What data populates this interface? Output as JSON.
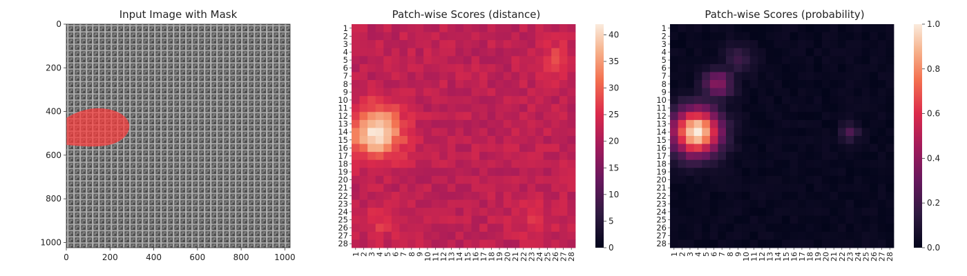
{
  "chart_data": [
    {
      "type": "image",
      "title": "Input Image with Mask",
      "x_ticks": [
        0,
        200,
        400,
        600,
        800,
        1000
      ],
      "y_ticks": [
        0,
        200,
        400,
        600,
        800,
        1000
      ],
      "xlim": [
        0,
        1024
      ],
      "ylim": [
        1024,
        0
      ],
      "mask_color": "#ff3b3b",
      "texture_colors": [
        "#2f2f2f",
        "#9a9a9a"
      ]
    },
    {
      "type": "heatmap",
      "title": "Patch-wise Scores (distance)",
      "rows": [
        "1",
        "2",
        "3",
        "4",
        "5",
        "6",
        "7",
        "8",
        "9",
        "10",
        "11",
        "12",
        "13",
        "14",
        "15",
        "16",
        "17",
        "18",
        "19",
        "20",
        "21",
        "22",
        "23",
        "24",
        "25",
        "26",
        "27",
        "28"
      ],
      "cols": [
        "1",
        "2",
        "3",
        "4",
        "5",
        "6",
        "7",
        "8",
        "9",
        "10",
        "11",
        "12",
        "13",
        "14",
        "15",
        "16",
        "17",
        "18",
        "19",
        "20",
        "21",
        "22",
        "23",
        "24",
        "25",
        "26",
        "27",
        "28"
      ],
      "vmin": 0,
      "vmax": 42,
      "colorbar_ticks": [
        0,
        5,
        10,
        15,
        20,
        25,
        30,
        35,
        40
      ],
      "colormap": "rocket",
      "background_level": 22,
      "hotspots": [
        {
          "row": 14,
          "col": 3.6,
          "peak": 42,
          "sigma": 1.7
        },
        {
          "row": 5,
          "col": 26,
          "peak": 27,
          "sigma": 1.2
        },
        {
          "row": 25,
          "col": 4.5,
          "peak": 26,
          "sigma": 1.3
        },
        {
          "row": 25,
          "col": 23.5,
          "peak": 25,
          "sigma": 1.3
        }
      ]
    },
    {
      "type": "heatmap",
      "title": "Patch-wise Scores (probability)",
      "rows": [
        "1",
        "2",
        "3",
        "4",
        "5",
        "6",
        "7",
        "8",
        "9",
        "10",
        "11",
        "12",
        "13",
        "14",
        "15",
        "16",
        "17",
        "18",
        "19",
        "20",
        "21",
        "22",
        "23",
        "24",
        "25",
        "26",
        "27",
        "28"
      ],
      "cols": [
        "1",
        "2",
        "3",
        "4",
        "5",
        "6",
        "7",
        "8",
        "9",
        "10",
        "11",
        "12",
        "13",
        "14",
        "15",
        "16",
        "17",
        "18",
        "19",
        "20",
        "21",
        "22",
        "23",
        "24",
        "25",
        "26",
        "27",
        "28"
      ],
      "vmin": 0,
      "vmax": 1,
      "colorbar_ticks": [
        0.0,
        0.2,
        0.4,
        0.6,
        0.8,
        1.0
      ],
      "colorbar_tick_labels": [
        "0.0",
        "0.2",
        "0.4",
        "0.6",
        "0.8",
        "1.0"
      ],
      "colormap": "rocket",
      "background_level": 0.02,
      "hotspots": [
        {
          "row": 14,
          "col": 3.8,
          "peak": 1.0,
          "sigma": 1.6
        },
        {
          "row": 8,
          "col": 6.5,
          "peak": 0.4,
          "sigma": 1.0
        },
        {
          "row": 5,
          "col": 9,
          "peak": 0.18,
          "sigma": 1.0
        },
        {
          "row": 14,
          "col": 23,
          "peak": 0.25,
          "sigma": 0.6
        }
      ]
    }
  ]
}
